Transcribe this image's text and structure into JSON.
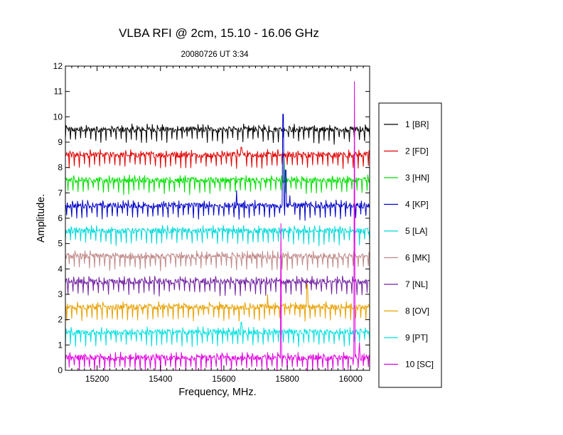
{
  "chart_data": {
    "type": "line",
    "title": "VLBA RFI @ 2cm, 15.10 - 16.06 GHz",
    "subtitle": "20080726   UT 3:34",
    "xlabel": "Frequency, MHz.",
    "ylabel": "Amplitude.",
    "xlim": [
      15100,
      16060
    ],
    "ylim": [
      0,
      12
    ],
    "xticks": [
      15200,
      15400,
      15600,
      15800,
      16000
    ],
    "yticks": [
      0,
      1,
      2,
      3,
      4,
      5,
      6,
      7,
      8,
      9,
      10,
      11,
      12
    ],
    "grid": false,
    "legend_position": "right",
    "series": [
      {
        "name": "1 [BR]",
        "color": "#000000",
        "baseline": 9.5,
        "spikes": []
      },
      {
        "name": "2 [FD]",
        "color": "#e00000",
        "baseline": 8.5,
        "spikes": [
          [
            15655,
            8.8
          ]
        ]
      },
      {
        "name": "3 [HN]",
        "color": "#00e000",
        "baseline": 7.5,
        "spikes": [
          [
            15790,
            8.4
          ]
        ]
      },
      {
        "name": "4 [KP]",
        "color": "#0000c8",
        "baseline": 6.5,
        "spikes": [
          [
            15787,
            10.1
          ],
          [
            15795,
            7.9
          ],
          [
            15808,
            6.9
          ],
          [
            15640,
            7.1
          ]
        ]
      },
      {
        "name": "5 [LA]",
        "color": "#00d8d8",
        "baseline": 5.5,
        "spikes": []
      },
      {
        "name": "6 [MK]",
        "color": "#c08888",
        "baseline": 4.5,
        "spikes": []
      },
      {
        "name": "7 [NL]",
        "color": "#7020a0",
        "baseline": 3.5,
        "spikes": []
      },
      {
        "name": "8 [OV]",
        "color": "#e8a000",
        "baseline": 2.5,
        "spikes": [
          [
            15738,
            3.0
          ],
          [
            15863,
            3.4
          ]
        ]
      },
      {
        "name": "9 [PT]",
        "color": "#00e0e0",
        "baseline": 1.5,
        "spikes": [
          [
            15655,
            1.9
          ]
        ]
      },
      {
        "name": "10 [SC]",
        "color": "#e000e0",
        "baseline": 0.5,
        "spikes": [
          [
            15780,
            5.8
          ],
          [
            16012,
            11.4
          ],
          [
            16028,
            1.1
          ]
        ]
      }
    ]
  }
}
